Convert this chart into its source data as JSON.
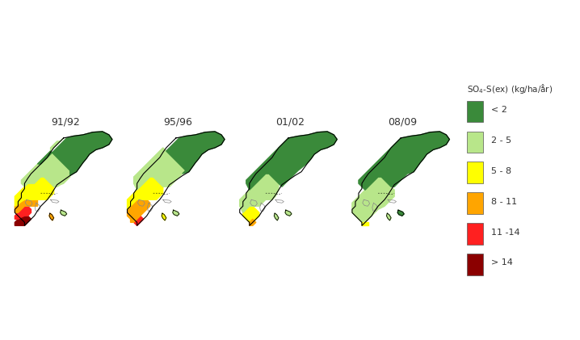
{
  "title": "",
  "years": [
    "91/92",
    "95/96",
    "01/02",
    "08/09"
  ],
  "legend_title": "SO₄-S(ex) (kg/ha/år)",
  "legend_labels": [
    "< 2",
    "2 - 5",
    "5 - 8",
    "8 - 11",
    "11 -14",
    "> 14"
  ],
  "legend_colors": [
    "#3a8a3a",
    "#b8e68a",
    "#ffff00",
    "#ffa500",
    "#ff2020",
    "#8b0000"
  ],
  "background_color": "#ffffff",
  "map_bg": "#ffffff",
  "border_color": "#333333",
  "figsize": [
    7.18,
    4.21
  ],
  "dpi": 100
}
